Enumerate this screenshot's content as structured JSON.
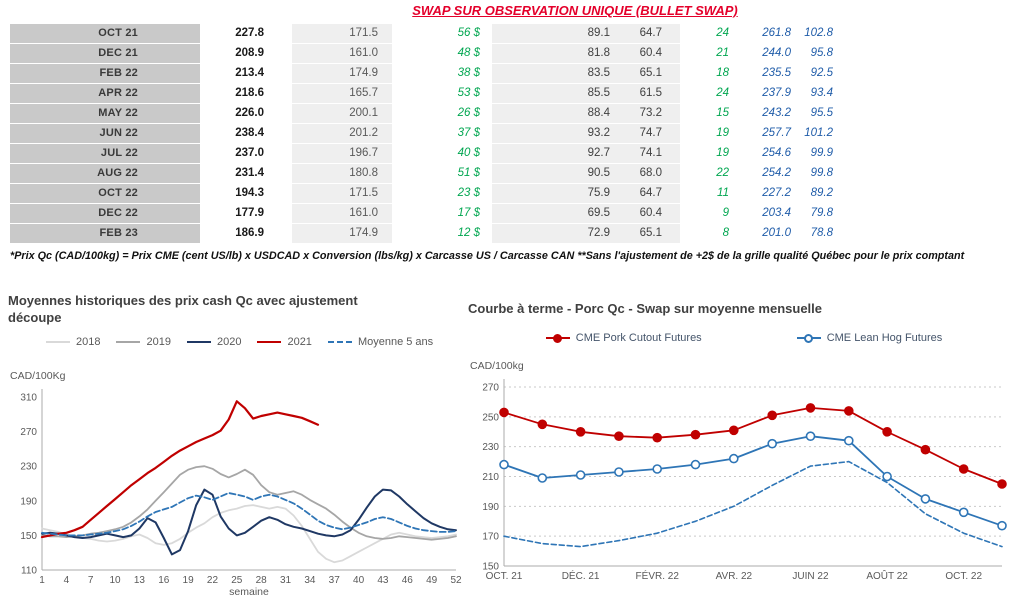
{
  "header": {
    "title": "SWAP SUR OBSERVATION UNIQUE (BULLET SWAP)"
  },
  "styles": {
    "title_red": "#e4002b",
    "green": "#00a650",
    "blue_italic": "#1f5ca9"
  },
  "table": {
    "rows": [
      {
        "month": "OCT 21",
        "v1": "227.8",
        "v2": "171.5",
        "v3": "56 $",
        "v4": "89.1",
        "v5": "64.7",
        "v6": "24",
        "v7": "261.8",
        "v8": "102.8"
      },
      {
        "month": "DEC 21",
        "v1": "208.9",
        "v2": "161.0",
        "v3": "48 $",
        "v4": "81.8",
        "v5": "60.4",
        "v6": "21",
        "v7": "244.0",
        "v8": "95.8"
      },
      {
        "month": "FEB 22",
        "v1": "213.4",
        "v2": "174.9",
        "v3": "38 $",
        "v4": "83.5",
        "v5": "65.1",
        "v6": "18",
        "v7": "235.5",
        "v8": "92.5"
      },
      {
        "month": "APR 22",
        "v1": "218.6",
        "v2": "165.7",
        "v3": "53 $",
        "v4": "85.5",
        "v5": "61.5",
        "v6": "24",
        "v7": "237.9",
        "v8": "93.4"
      },
      {
        "month": "MAY 22",
        "v1": "226.0",
        "v2": "200.1",
        "v3": "26 $",
        "v4": "88.4",
        "v5": "73.2",
        "v6": "15",
        "v7": "243.2",
        "v8": "95.5"
      },
      {
        "month": "JUN 22",
        "v1": "238.4",
        "v2": "201.2",
        "v3": "37 $",
        "v4": "93.2",
        "v5": "74.7",
        "v6": "19",
        "v7": "257.7",
        "v8": "101.2"
      },
      {
        "month": "JUL 22",
        "v1": "237.0",
        "v2": "196.7",
        "v3": "40 $",
        "v4": "92.7",
        "v5": "74.1",
        "v6": "19",
        "v7": "254.6",
        "v8": "99.9"
      },
      {
        "month": "AUG 22",
        "v1": "231.4",
        "v2": "180.8",
        "v3": "51 $",
        "v4": "90.5",
        "v5": "68.0",
        "v6": "22",
        "v7": "254.2",
        "v8": "99.8"
      },
      {
        "month": "OCT 22",
        "v1": "194.3",
        "v2": "171.5",
        "v3": "23 $",
        "v4": "75.9",
        "v5": "64.7",
        "v6": "11",
        "v7": "227.2",
        "v8": "89.2"
      },
      {
        "month": "DEC 22",
        "v1": "177.9",
        "v2": "161.0",
        "v3": "17 $",
        "v4": "69.5",
        "v5": "60.4",
        "v6": "9",
        "v7": "203.4",
        "v8": "79.8"
      },
      {
        "month": "FEB 23",
        "v1": "186.9",
        "v2": "174.9",
        "v3": "12 $",
        "v4": "72.9",
        "v5": "65.1",
        "v6": "8",
        "v7": "201.0",
        "v8": "78.8"
      }
    ]
  },
  "footnote": "*Prix Qc (CAD/100kg) = Prix CME (cent US/lb) x USDCAD x Conversion (lbs/kg) x Carcasse US / Carcasse CAN **Sans l'ajustement de +2$ de la grille qualité Québec pour le prix comptant",
  "chart_data": [
    {
      "type": "line",
      "title": "Moyennes historiques des prix cash Qc avec ajustement découpe",
      "ylabel": "CAD/100Kg",
      "xlabel": "semaine",
      "ylim": [
        110,
        310
      ],
      "yticks": [
        110,
        150,
        190,
        230,
        270,
        310
      ],
      "xticks": [
        1,
        4,
        7,
        10,
        13,
        16,
        19,
        22,
        25,
        28,
        31,
        34,
        37,
        40,
        43,
        46,
        49,
        52
      ],
      "grid": false,
      "legend_position": "top",
      "series": [
        {
          "name": "2018",
          "color": "#d9d9d9",
          "width": 1.8,
          "dash": false,
          "values": [
            158,
            156,
            154,
            151,
            149,
            147,
            146,
            144,
            143,
            144,
            146,
            149,
            151,
            147,
            141,
            139,
            141,
            146,
            153,
            159,
            164,
            171,
            176,
            179,
            181,
            184,
            185,
            183,
            181,
            183,
            181,
            173,
            161,
            146,
            131,
            123,
            119,
            121,
            126,
            131,
            136,
            141,
            146,
            151,
            153,
            151,
            149,
            148,
            147,
            148,
            149,
            151
          ]
        },
        {
          "name": "2019",
          "color": "#a6a6a6",
          "width": 1.8,
          "dash": false,
          "values": [
            150,
            149,
            149,
            148,
            149,
            150,
            152,
            153,
            155,
            157,
            160,
            165,
            172,
            180,
            190,
            200,
            210,
            220,
            226,
            229,
            230,
            227,
            221,
            217,
            221,
            226,
            220,
            208,
            200,
            197,
            199,
            201,
            197,
            191,
            186,
            181,
            174,
            166,
            159,
            153,
            149,
            147,
            146,
            147,
            149,
            148,
            147,
            146,
            145,
            146,
            147,
            149
          ]
        },
        {
          "name": "2020",
          "color": "#1f3864",
          "width": 2,
          "dash": false,
          "values": [
            152,
            153,
            152,
            150,
            148,
            147,
            148,
            150,
            152,
            150,
            148,
            150,
            158,
            170,
            165,
            147,
            128,
            133,
            155,
            185,
            203,
            197,
            172,
            158,
            150,
            153,
            160,
            167,
            171,
            168,
            163,
            160,
            158,
            155,
            152,
            150,
            149,
            151,
            156,
            168,
            182,
            195,
            203,
            202,
            195,
            186,
            178,
            170,
            164,
            160,
            157,
            156
          ]
        },
        {
          "name": "2021",
          "color": "#c00000",
          "width": 2.2,
          "dash": false,
          "values": [
            148,
            150,
            152,
            153,
            156,
            160,
            168,
            176,
            184,
            192,
            200,
            208,
            215,
            222,
            228,
            235,
            242,
            248,
            253,
            258,
            262,
            266,
            271,
            284,
            305,
            297,
            285,
            288,
            290,
            292,
            290,
            288,
            286,
            282,
            278,
            null,
            null,
            null,
            null,
            null,
            null,
            null,
            null,
            null,
            null,
            null,
            null,
            null,
            null,
            null,
            null,
            null
          ]
        },
        {
          "name": "Moyenne 5 ans",
          "color": "#2e75b6",
          "width": 1.8,
          "dash": true,
          "dashpat": "6 3",
          "values": [
            153,
            152,
            151,
            150,
            150,
            150,
            151,
            152,
            153,
            155,
            157,
            161,
            166,
            172,
            177,
            180,
            183,
            188,
            193,
            196,
            194,
            191,
            195,
            199,
            197,
            195,
            191,
            195,
            197,
            195,
            191,
            187,
            181,
            174,
            167,
            162,
            159,
            157,
            159,
            162,
            165,
            169,
            171,
            169,
            165,
            161,
            158,
            156,
            155,
            154,
            154,
            155
          ]
        }
      ]
    },
    {
      "type": "line",
      "title": "Courbe à terme - Porc Qc - Swap sur moyenne mensuelle",
      "ylabel": "CAD/100kg",
      "xlabel": "",
      "ylim": [
        150,
        270
      ],
      "yticks": [
        150,
        170,
        190,
        210,
        230,
        250,
        270
      ],
      "xtick_labels": [
        "OCT. 21",
        "DÉC. 21",
        "FÉVR. 22",
        "AVR. 22",
        "JUIN 22",
        "AOÛT 22",
        "OCT. 22"
      ],
      "xtick_positions": [
        0,
        2,
        4,
        6,
        8,
        10,
        12
      ],
      "grid": true,
      "legend_position": "top",
      "series": [
        {
          "name": "CME Pork Cutout Futures",
          "color": "#c00000",
          "width": 1.8,
          "dash": false,
          "marker": "filled",
          "values": [
            253,
            245,
            240,
            237,
            236,
            238,
            241,
            251,
            256,
            254,
            240,
            228,
            215,
            205
          ]
        },
        {
          "name": "CME Lean Hog Futures",
          "color": "#2e75b6",
          "width": 1.8,
          "dash": false,
          "marker": "open",
          "values": [
            218,
            209,
            211,
            213,
            215,
            218,
            222,
            232,
            237,
            234,
            210,
            195,
            186,
            177
          ]
        },
        {
          "name": "",
          "color": "#2e75b6",
          "width": 1.6,
          "dash": true,
          "dashpat": "5 3",
          "values": [
            170,
            165,
            163,
            167,
            172,
            180,
            190,
            204,
            217,
            220,
            206,
            185,
            172,
            163
          ]
        }
      ]
    }
  ]
}
